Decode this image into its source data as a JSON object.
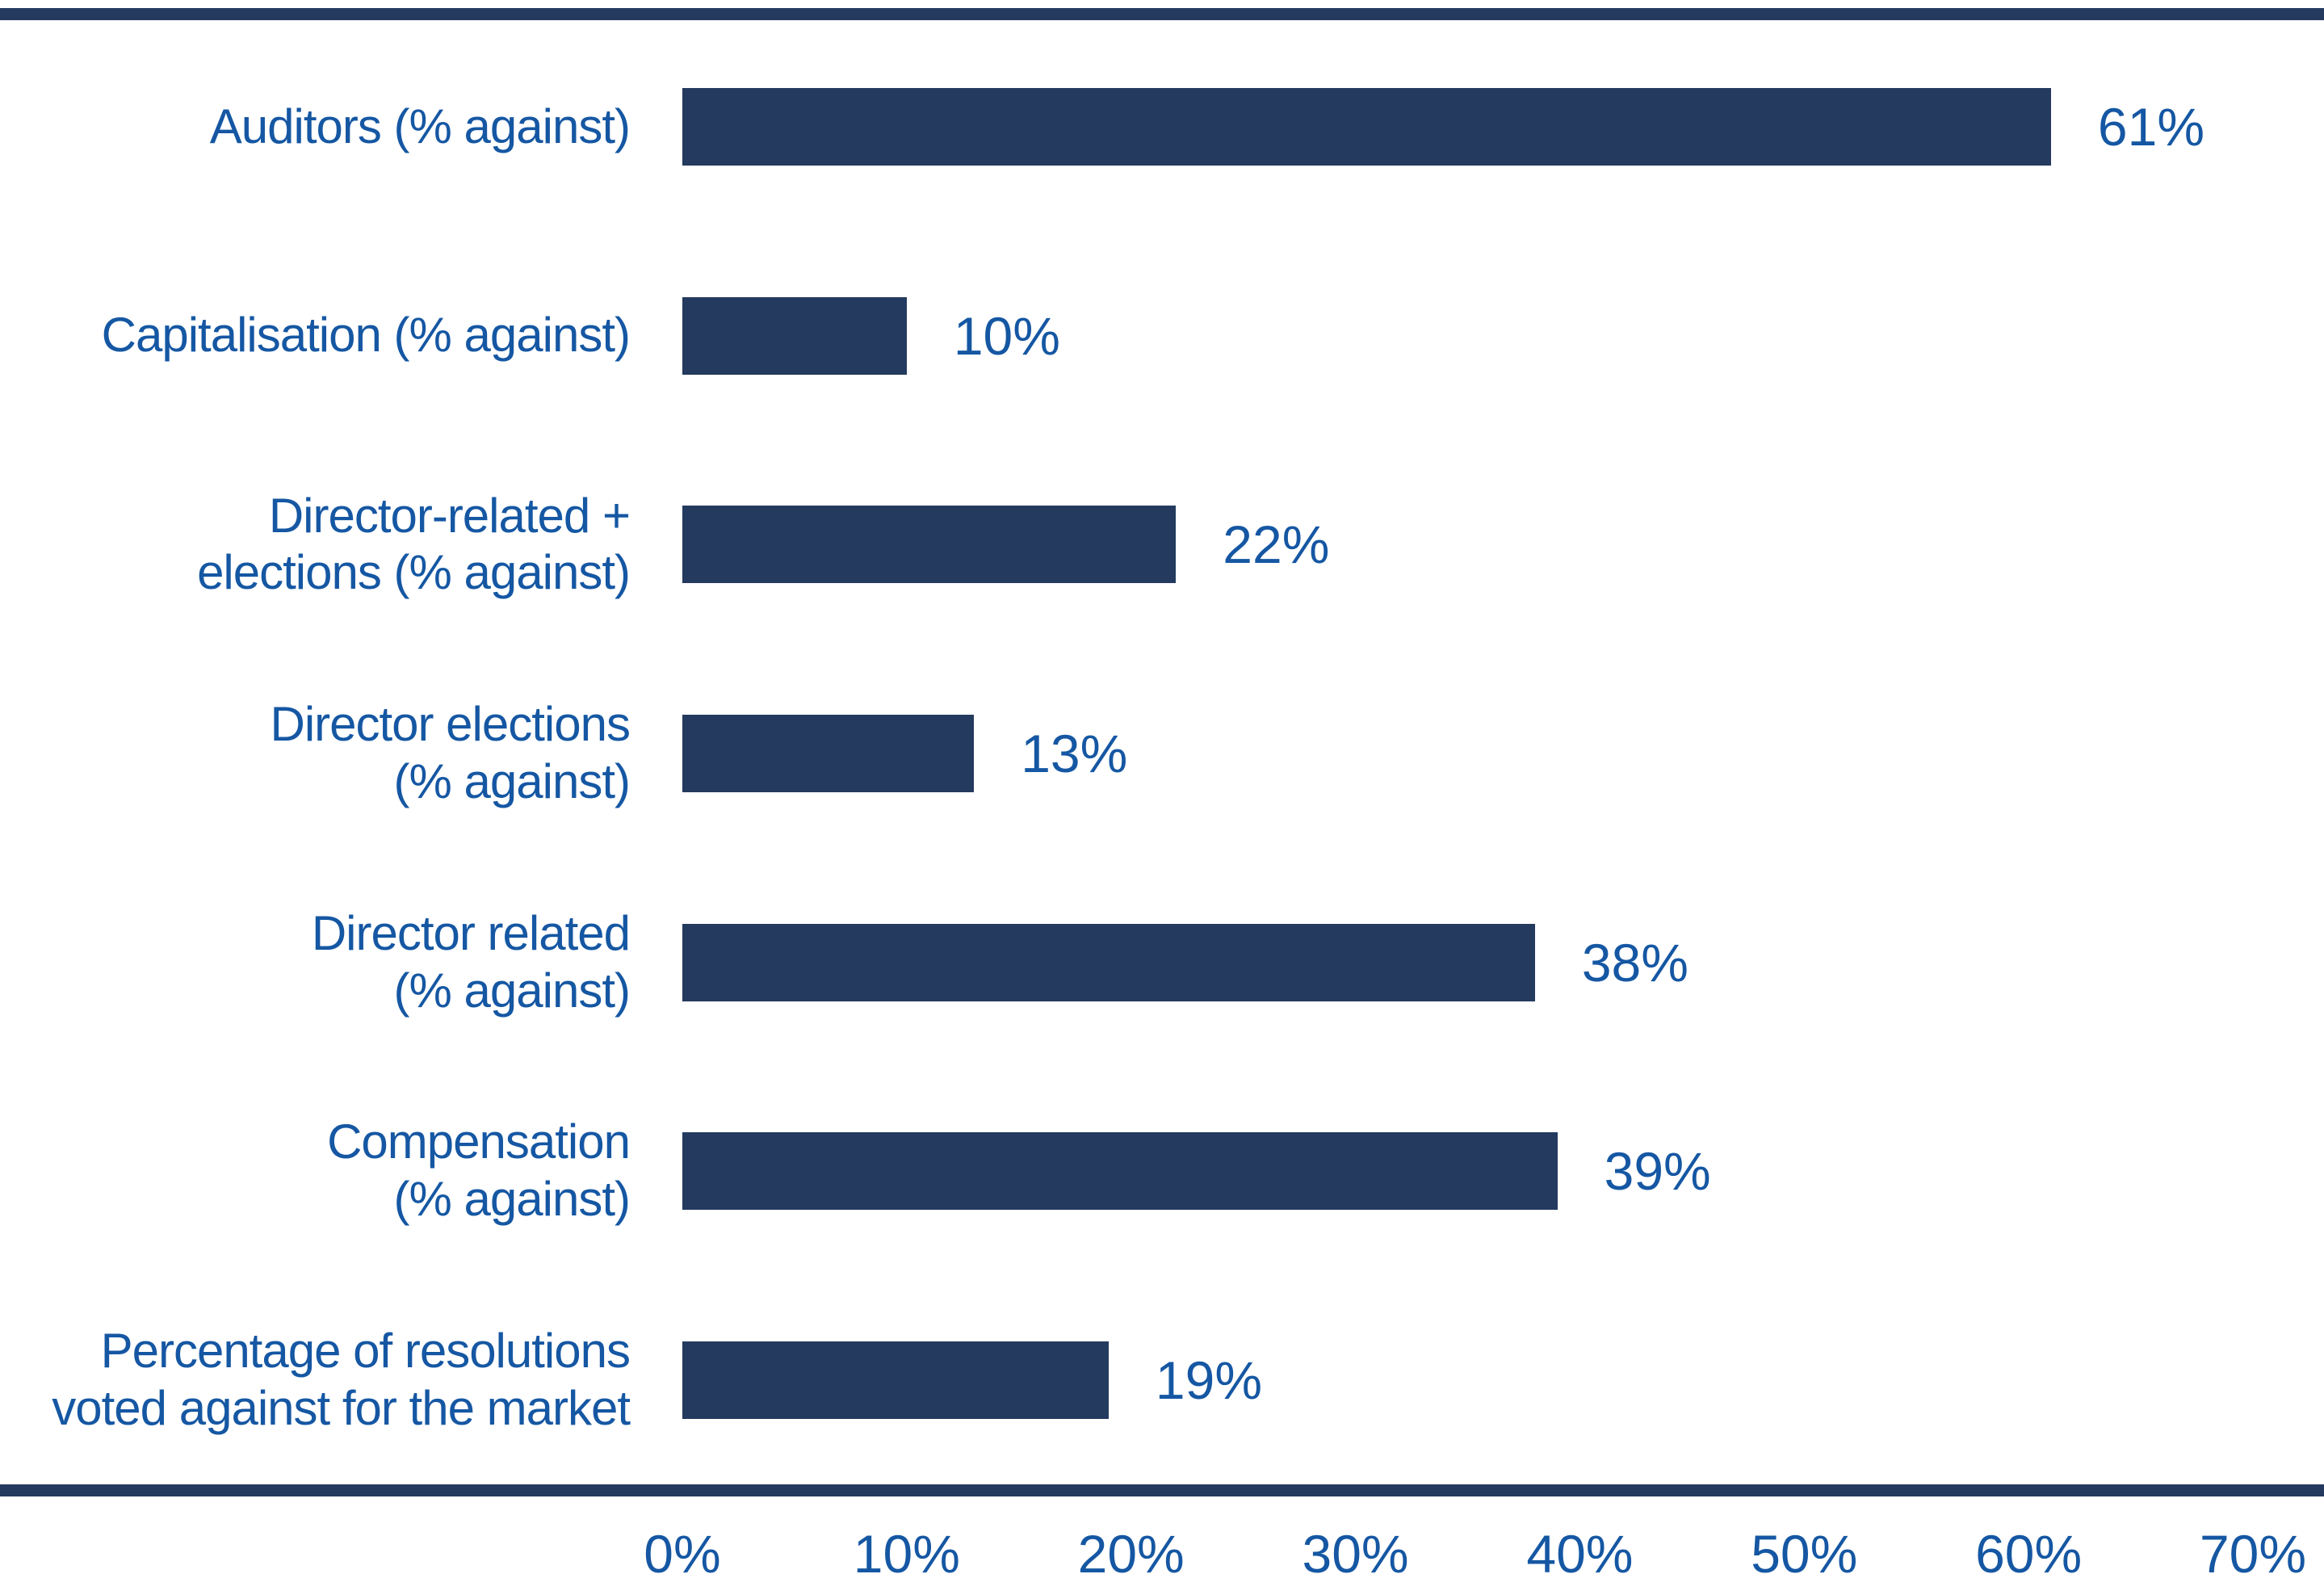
{
  "chart_data": {
    "type": "bar",
    "orientation": "horizontal",
    "title": "",
    "xlabel": "",
    "ylabel": "",
    "grid": "off",
    "legend": "none",
    "xlim": [
      0,
      70
    ],
    "x_ticks": [
      "0%",
      "10%",
      "20%",
      "30%",
      "40%",
      "50%",
      "60%",
      "70%"
    ],
    "categories": [
      "Auditors (% against)",
      "Capitalisation (% against)",
      "Director-related +\nelections (% against)",
      "Director elections\n(% against)",
      "Director related\n(% against)",
      "Compensation\n(% against)",
      "Percentage of resolutions\nvoted against for the market"
    ],
    "values": [
      61,
      10,
      22,
      13,
      38,
      39,
      19
    ],
    "value_labels": [
      "61%",
      "10%",
      "22%",
      "13%",
      "38%",
      "39%",
      "19%"
    ],
    "colors": {
      "bar": "#243a5f",
      "label_text": "#1557a3",
      "axis_rule": "#243a5f",
      "background": "#ffffff"
    }
  }
}
